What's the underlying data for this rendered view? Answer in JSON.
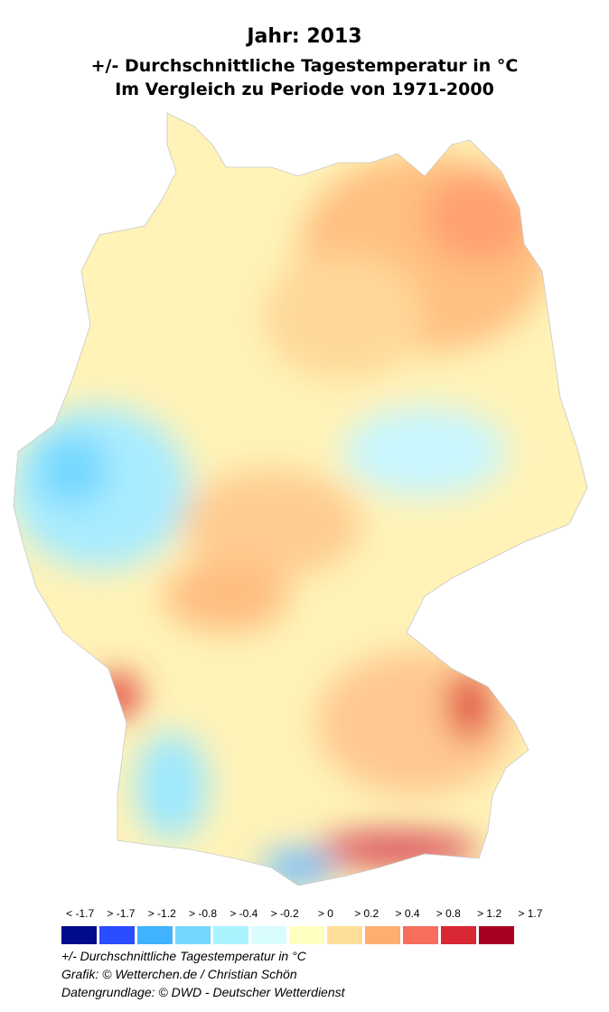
{
  "title": {
    "line1": "Jahr: 2013",
    "line2": "+/- Durchschnittliche Tagestemperatur in °C",
    "line3": "Im Vergleich zu Periode von 1971-2000"
  },
  "legend": {
    "items": [
      {
        "label": "< -1.7",
        "color": "#000b8c"
      },
      {
        "label": "> -1.7",
        "color": "#2b4cff"
      },
      {
        "label": "> -1.2",
        "color": "#40b2ff"
      },
      {
        "label": "> -0.8",
        "color": "#73d7ff"
      },
      {
        "label": "> -0.4",
        "color": "#a9f3ff"
      },
      {
        "label": "> -0.2",
        "color": "#d9fdff"
      },
      {
        "label": "> 0",
        "color": "#ffffc0"
      },
      {
        "label": "> 0.2",
        "color": "#ffdf98"
      },
      {
        "label": "> 0.4",
        "color": "#ffae72"
      },
      {
        "label": "> 0.8",
        "color": "#f76e5e"
      },
      {
        "label": "> 1.2",
        "color": "#d92834"
      },
      {
        "label": "> 1.7",
        "color": "#a50022"
      }
    ]
  },
  "notes": {
    "unit": "+/- Durchschnittliche Tagestemperatur in °C",
    "credit": "Grafik: © Wetterchen.de / Christian Schön",
    "source": "Datengrundlage: © DWD - Deutscher Wetterdienst"
  }
}
